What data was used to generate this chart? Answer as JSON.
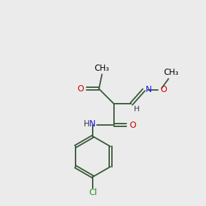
{
  "bg_color": "#ebebeb",
  "bond_color": "#3a5a3a",
  "atom_colors": {
    "O": "#cc0000",
    "N": "#1a1aee",
    "Cl": "#2a8c2a",
    "H": "#333333"
  },
  "figsize": [
    3.0,
    3.0
  ],
  "dpi": 100,
  "xlim": [
    0,
    10
  ],
  "ylim": [
    0,
    10
  ]
}
